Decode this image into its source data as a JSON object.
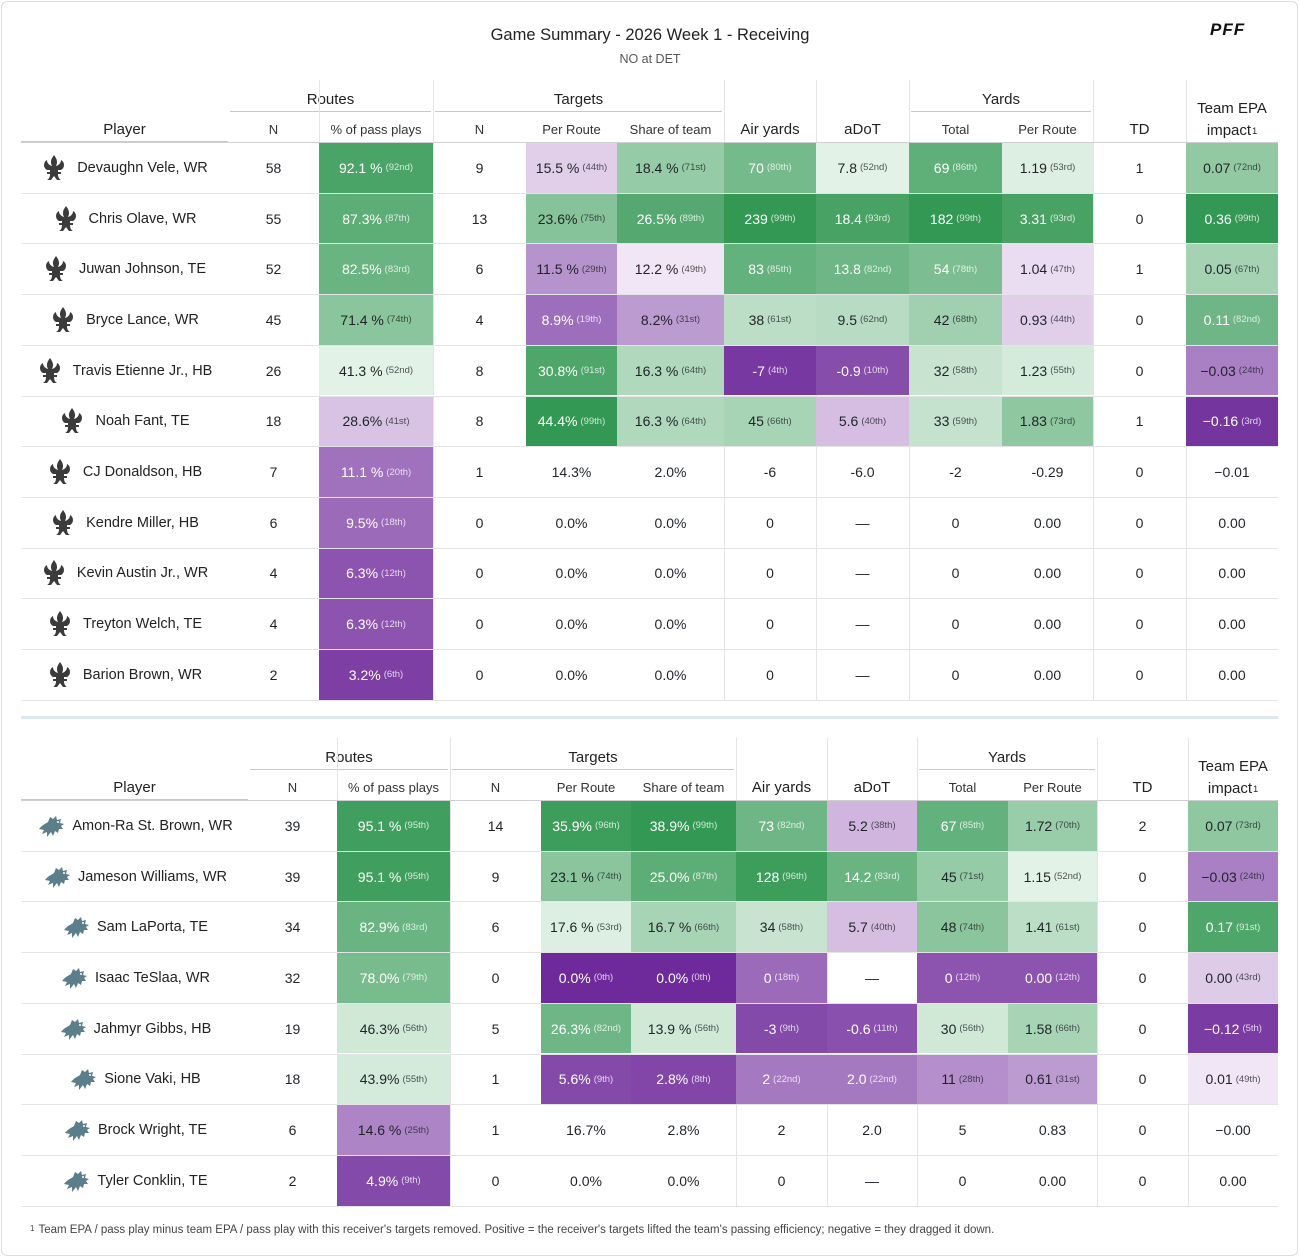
{
  "header": {
    "title": "Game Summary - 2026 Week 1 - Receiving",
    "subtitle": "NO at DET",
    "logo_text": "PFF"
  },
  "column_headers": {
    "player": "Player",
    "routes_group": "Routes",
    "targets_group": "Targets",
    "yards_group": "Yards",
    "routes_n": "N",
    "routes_pct": "% of pass plays",
    "targets_n": "N",
    "per_route": "Per Route",
    "share_of_team": "Share of team",
    "air_yards": "Air yards",
    "adot": "aDoT",
    "yards_total": "Total",
    "yards_per_route": "Per Route",
    "td": "TD",
    "epa": "Team EPA impact",
    "epa_line1": "Team EPA",
    "epa_line2": "impact",
    "epa_sup": "1"
  },
  "colors": {
    "green_strong": "#3d9e5c",
    "green_light": "#e8f5ec",
    "purple_strong": "#7f3aa6",
    "purple_light": "#f3e9f6",
    "saints_icon": "#3b3b3b",
    "lions_icon": "#5b7e8a"
  },
  "teams": [
    {
      "team": "NO",
      "icon": "saints-fleur-de-lis-icon",
      "rows": [
        {
          "player": "Devaughn Vele, WR",
          "routes_n": "58",
          "routes_pct": "92.1 %",
          "routes_pct_rank": "(92nd)",
          "tgt_n": "9",
          "per_route": "15.5 %",
          "per_route_rank": "(44th)",
          "share": "18.4 %",
          "share_rank": "(71st)",
          "air": "70",
          "air_rank": "(80th)",
          "adot": "7.8",
          "adot_rank": "(52nd)",
          "yds": "69",
          "yds_rank": "(86th)",
          "ypr": "1.19",
          "ypr_rank": "(53rd)",
          "td": "1",
          "epa": "0.07",
          "epa_rank": "(72nd)"
        },
        {
          "player": "Chris Olave, WR",
          "routes_n": "55",
          "routes_pct": "87.3%",
          "routes_pct_rank": "(87th)",
          "tgt_n": "13",
          "per_route": "23.6%",
          "per_route_rank": "(75th)",
          "share": "26.5%",
          "share_rank": "(89th)",
          "air": "239",
          "air_rank": "(99th)",
          "adot": "18.4",
          "adot_rank": "(93rd)",
          "yds": "182",
          "yds_rank": "(99th)",
          "ypr": "3.31",
          "ypr_rank": "(93rd)",
          "td": "0",
          "epa": "0.36",
          "epa_rank": "(99th)"
        },
        {
          "player": "Juwan Johnson, TE",
          "routes_n": "52",
          "routes_pct": "82.5%",
          "routes_pct_rank": "(83rd)",
          "tgt_n": "6",
          "per_route": "11.5 %",
          "per_route_rank": "(29th)",
          "share": "12.2 %",
          "share_rank": "(49th)",
          "air": "83",
          "air_rank": "(85th)",
          "adot": "13.8",
          "adot_rank": "(82nd)",
          "yds": "54",
          "yds_rank": "(78th)",
          "ypr": "1.04",
          "ypr_rank": "(47th)",
          "td": "1",
          "epa": "0.05",
          "epa_rank": "(67th)"
        },
        {
          "player": "Bryce Lance, WR",
          "routes_n": "45",
          "routes_pct": "71.4 %",
          "routes_pct_rank": "(74th)",
          "tgt_n": "4",
          "per_route": "8.9%",
          "per_route_rank": "(19th)",
          "share": "8.2%",
          "share_rank": "(31st)",
          "air": "38",
          "air_rank": "(61st)",
          "adot": "9.5",
          "adot_rank": "(62nd)",
          "yds": "42",
          "yds_rank": "(68th)",
          "ypr": "0.93",
          "ypr_rank": "(44th)",
          "td": "0",
          "epa": "0.11",
          "epa_rank": "(82nd)"
        },
        {
          "player": "Travis Etienne Jr., HB",
          "routes_n": "26",
          "routes_pct": "41.3 %",
          "routes_pct_rank": "(52nd)",
          "tgt_n": "8",
          "per_route": "30.8%",
          "per_route_rank": "(91st)",
          "share": "16.3 %",
          "share_rank": "(64th)",
          "air": "-7",
          "air_rank": "(4th)",
          "adot": "-0.9",
          "adot_rank": "(10th)",
          "yds": "32",
          "yds_rank": "(58th)",
          "ypr": "1.23",
          "ypr_rank": "(55th)",
          "td": "0",
          "epa": "−0.03",
          "epa_rank": "(24th)"
        },
        {
          "player": "Noah Fant, TE",
          "routes_n": "18",
          "routes_pct": "28.6%",
          "routes_pct_rank": "(41st)",
          "tgt_n": "8",
          "per_route": "44.4%",
          "per_route_rank": "(99th)",
          "share": "16.3 %",
          "share_rank": "(64th)",
          "air": "45",
          "air_rank": "(66th)",
          "adot": "5.6",
          "adot_rank": "(40th)",
          "yds": "33",
          "yds_rank": "(59th)",
          "ypr": "1.83",
          "ypr_rank": "(73rd)",
          "td": "1",
          "epa": "−0.16",
          "epa_rank": "(3rd)"
        },
        {
          "player": "CJ Donaldson, HB",
          "routes_n": "7",
          "routes_pct": "11.1 %",
          "routes_pct_rank": "(20th)",
          "tgt_n": "1",
          "per_route": "14.3%",
          "per_route_rank": "",
          "share": "2.0%",
          "share_rank": "",
          "air": "-6",
          "air_rank": "",
          "adot": "-6.0",
          "adot_rank": "",
          "yds": "-2",
          "yds_rank": "",
          "ypr": "-0.29",
          "ypr_rank": "",
          "td": "0",
          "epa": "−0.01",
          "epa_rank": ""
        },
        {
          "player": "Kendre Miller, HB",
          "routes_n": "6",
          "routes_pct": "9.5%",
          "routes_pct_rank": "(18th)",
          "tgt_n": "0",
          "per_route": "0.0%",
          "per_route_rank": "",
          "share": "0.0%",
          "share_rank": "",
          "air": "0",
          "air_rank": "",
          "adot": "—",
          "adot_rank": "",
          "yds": "0",
          "yds_rank": "",
          "ypr": "0.00",
          "ypr_rank": "",
          "td": "0",
          "epa": "0.00",
          "epa_rank": ""
        },
        {
          "player": "Kevin Austin Jr., WR",
          "routes_n": "4",
          "routes_pct": "6.3%",
          "routes_pct_rank": "(12th)",
          "tgt_n": "0",
          "per_route": "0.0%",
          "per_route_rank": "",
          "share": "0.0%",
          "share_rank": "",
          "air": "0",
          "air_rank": "",
          "adot": "—",
          "adot_rank": "",
          "yds": "0",
          "yds_rank": "",
          "ypr": "0.00",
          "ypr_rank": "",
          "td": "0",
          "epa": "0.00",
          "epa_rank": ""
        },
        {
          "player": "Treyton Welch, TE",
          "routes_n": "4",
          "routes_pct": "6.3%",
          "routes_pct_rank": "(12th)",
          "tgt_n": "0",
          "per_route": "0.0%",
          "per_route_rank": "",
          "share": "0.0%",
          "share_rank": "",
          "air": "0",
          "air_rank": "",
          "adot": "—",
          "adot_rank": "",
          "yds": "0",
          "yds_rank": "",
          "ypr": "0.00",
          "ypr_rank": "",
          "td": "0",
          "epa": "0.00",
          "epa_rank": ""
        },
        {
          "player": "Barion Brown, WR",
          "routes_n": "2",
          "routes_pct": "3.2%",
          "routes_pct_rank": "(6th)",
          "tgt_n": "0",
          "per_route": "0.0%",
          "per_route_rank": "",
          "share": "0.0%",
          "share_rank": "",
          "air": "0",
          "air_rank": "",
          "adot": "—",
          "adot_rank": "",
          "yds": "0",
          "yds_rank": "",
          "ypr": "0.00",
          "ypr_rank": "",
          "td": "0",
          "epa": "0.00",
          "epa_rank": ""
        }
      ]
    },
    {
      "team": "DET",
      "icon": "lions-logo-icon",
      "rows": [
        {
          "player": "Amon-Ra St. Brown, WR",
          "routes_n": "39",
          "routes_pct": "95.1 %",
          "routes_pct_rank": "(95th)",
          "tgt_n": "14",
          "per_route": "35.9%",
          "per_route_rank": "(96th)",
          "share": "38.9%",
          "share_rank": "(99th)",
          "air": "73",
          "air_rank": "(82nd)",
          "adot": "5.2",
          "adot_rank": "(38th)",
          "yds": "67",
          "yds_rank": "(85th)",
          "ypr": "1.72",
          "ypr_rank": "(70th)",
          "td": "2",
          "epa": "0.07",
          "epa_rank": "(73rd)"
        },
        {
          "player": "Jameson Williams, WR",
          "routes_n": "39",
          "routes_pct": "95.1 %",
          "routes_pct_rank": "(95th)",
          "tgt_n": "9",
          "per_route": "23.1 %",
          "per_route_rank": "(74th)",
          "share": "25.0%",
          "share_rank": "(87th)",
          "air": "128",
          "air_rank": "(96th)",
          "adot": "14.2",
          "adot_rank": "(83rd)",
          "yds": "45",
          "yds_rank": "(71st)",
          "ypr": "1.15",
          "ypr_rank": "(52nd)",
          "td": "0",
          "epa": "−0.03",
          "epa_rank": "(24th)"
        },
        {
          "player": "Sam LaPorta, TE",
          "routes_n": "34",
          "routes_pct": "82.9%",
          "routes_pct_rank": "(83rd)",
          "tgt_n": "6",
          "per_route": "17.6 %",
          "per_route_rank": "(53rd)",
          "share": "16.7 %",
          "share_rank": "(66th)",
          "air": "34",
          "air_rank": "(58th)",
          "adot": "5.7",
          "adot_rank": "(40th)",
          "yds": "48",
          "yds_rank": "(74th)",
          "ypr": "1.41",
          "ypr_rank": "(61st)",
          "td": "0",
          "epa": "0.17",
          "epa_rank": "(91st)"
        },
        {
          "player": "Isaac TeSlaa, WR",
          "routes_n": "32",
          "routes_pct": "78.0%",
          "routes_pct_rank": "(79th)",
          "tgt_n": "0",
          "per_route": "0.0%",
          "per_route_rank": "(0th)",
          "share": "0.0%",
          "share_rank": "(0th)",
          "air": "0",
          "air_rank": "(18th)",
          "adot": "—",
          "adot_rank": "",
          "yds": "0",
          "yds_rank": "(12th)",
          "ypr": "0.00",
          "ypr_rank": "(12th)",
          "td": "0",
          "epa": "0.00",
          "epa_rank": "(43rd)"
        },
        {
          "player": "Jahmyr Gibbs, HB",
          "routes_n": "19",
          "routes_pct": "46.3%",
          "routes_pct_rank": "(56th)",
          "tgt_n": "5",
          "per_route": "26.3%",
          "per_route_rank": "(82nd)",
          "share": "13.9 %",
          "share_rank": "(56th)",
          "air": "-3",
          "air_rank": "(9th)",
          "adot": "-0.6",
          "adot_rank": "(11th)",
          "yds": "30",
          "yds_rank": "(56th)",
          "ypr": "1.58",
          "ypr_rank": "(66th)",
          "td": "0",
          "epa": "−0.12",
          "epa_rank": "(5th)"
        },
        {
          "player": "Sione Vaki, HB",
          "routes_n": "18",
          "routes_pct": "43.9%",
          "routes_pct_rank": "(55th)",
          "tgt_n": "1",
          "per_route": "5.6%",
          "per_route_rank": "(9th)",
          "share": "2.8%",
          "share_rank": "(8th)",
          "air": "2",
          "air_rank": "(22nd)",
          "adot": "2.0",
          "adot_rank": "(22nd)",
          "yds": "11",
          "yds_rank": "(28th)",
          "ypr": "0.61",
          "ypr_rank": "(31st)",
          "td": "0",
          "epa": "0.01",
          "epa_rank": "(49th)"
        },
        {
          "player": "Brock Wright, TE",
          "routes_n": "6",
          "routes_pct": "14.6 %",
          "routes_pct_rank": "(25th)",
          "tgt_n": "1",
          "per_route": "16.7%",
          "per_route_rank": "",
          "share": "2.8%",
          "share_rank": "",
          "air": "2",
          "air_rank": "",
          "adot": "2.0",
          "adot_rank": "",
          "yds": "5",
          "yds_rank": "",
          "ypr": "0.83",
          "ypr_rank": "",
          "td": "0",
          "epa": "−0.00",
          "epa_rank": ""
        },
        {
          "player": "Tyler Conklin, TE",
          "routes_n": "2",
          "routes_pct": "4.9%",
          "routes_pct_rank": "(9th)",
          "tgt_n": "0",
          "per_route": "0.0%",
          "per_route_rank": "",
          "share": "0.0%",
          "share_rank": "",
          "air": "0",
          "air_rank": "",
          "adot": "—",
          "adot_rank": "",
          "yds": "0",
          "yds_rank": "",
          "ypr": "0.00",
          "ypr_rank": "",
          "td": "0",
          "epa": "0.00",
          "epa_rank": ""
        }
      ]
    }
  ],
  "footnote": {
    "marker": "1",
    "text": "Team EPA / pass play minus team EPA / pass play with this receiver's targets removed. Positive = the receiver's targets lifted the team's passing efficiency; negative = they dragged it down."
  }
}
